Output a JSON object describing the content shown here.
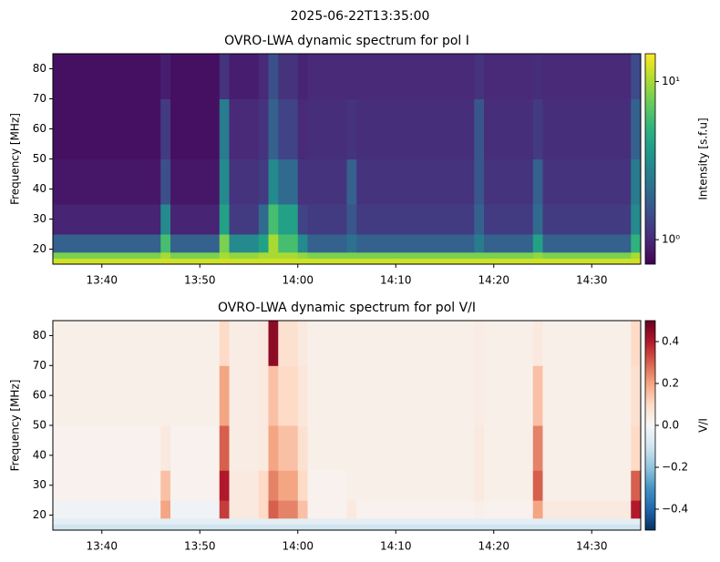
{
  "title": "2025-06-22T13:35:00",
  "chart_data": [
    {
      "type": "heatmap",
      "title": "OVRO-LWA dynamic spectrum for pol I",
      "ylabel": "Frequency [MHz]",
      "colorbar_label": "Intensity [s.f.u]",
      "colormap": "viridis",
      "color_scale": "log",
      "x": [
        "13:35",
        "13:46",
        "13:47",
        "13:52",
        "13:53",
        "13:56",
        "13:57",
        "13:58",
        "14:00",
        "14:01",
        "14:05",
        "14:06",
        "14:18",
        "14:19",
        "14:24",
        "14:25",
        "14:34",
        "14:35"
      ],
      "y": [
        15,
        17,
        19,
        25,
        35,
        50,
        70,
        85
      ],
      "values": [
        [
          12,
          12,
          12,
          12,
          12,
          12,
          12,
          12,
          12,
          12,
          12,
          12,
          12,
          12,
          12,
          12,
          12
        ],
        [
          8,
          10,
          8,
          10,
          9,
          10,
          10,
          10,
          9,
          8,
          8,
          8,
          8,
          8,
          9,
          8,
          10
        ],
        [
          1.8,
          6,
          1.8,
          8,
          3,
          4,
          10,
          6,
          3,
          1.8,
          2.2,
          1.8,
          2.5,
          1.8,
          4,
          1.8,
          5
        ],
        [
          0.95,
          3,
          0.95,
          4,
          1.2,
          2,
          6,
          4,
          1.3,
          1.2,
          1.6,
          1.2,
          1.8,
          1.2,
          2,
          1.2,
          3
        ],
        [
          0.85,
          1.5,
          0.85,
          3,
          1.1,
          1.2,
          3,
          2,
          1.1,
          1.1,
          1.8,
          1.1,
          1.6,
          1.1,
          1.8,
          1.1,
          2.5
        ],
        [
          0.8,
          1.2,
          0.8,
          2.5,
          1,
          1.1,
          1.8,
          1.3,
          1,
          1.05,
          1.1,
          1.05,
          1.6,
          1.05,
          1.2,
          1.05,
          1.8
        ],
        [
          0.8,
          0.9,
          0.8,
          1.1,
          0.9,
          1,
          1.5,
          1.1,
          0.95,
          1,
          1,
          1,
          1.1,
          1,
          1.05,
          1,
          1.4
        ]
      ],
      "xlim": [
        "13:35",
        "14:35"
      ],
      "xticks": [
        "13:40",
        "13:50",
        "14:00",
        "14:10",
        "14:20",
        "14:30"
      ],
      "ylim": [
        15,
        85
      ],
      "yticks": [
        20,
        30,
        40,
        50,
        60,
        70,
        80
      ],
      "clim": [
        0.7,
        15
      ],
      "cticks": [
        {
          "value": 1,
          "label": "10⁰"
        },
        {
          "value": 10,
          "label": "10¹"
        }
      ]
    },
    {
      "type": "heatmap",
      "title": "OVRO-LWA dynamic spectrum for pol V/I",
      "ylabel": "Frequency [MHz]",
      "colorbar_label": "V/I",
      "colormap": "RdBu_r",
      "color_scale": "linear",
      "x": [
        "13:35",
        "13:46",
        "13:47",
        "13:52",
        "13:53",
        "13:56",
        "13:57",
        "13:58",
        "14:00",
        "14:01",
        "14:05",
        "14:06",
        "14:18",
        "14:19",
        "14:24",
        "14:25",
        "14:34",
        "14:35"
      ],
      "y": [
        15,
        17,
        19,
        25,
        35,
        50,
        70,
        85
      ],
      "values": [
        [
          -0.1,
          -0.1,
          -0.1,
          -0.1,
          -0.1,
          -0.1,
          -0.1,
          -0.1,
          -0.1,
          -0.1,
          -0.1,
          -0.1,
          -0.1,
          -0.1,
          -0.1,
          -0.1,
          -0.1
        ],
        [
          -0.05,
          -0.05,
          -0.05,
          -0.05,
          -0.05,
          -0.05,
          -0.05,
          -0.05,
          -0.05,
          -0.05,
          -0.05,
          -0.05,
          -0.05,
          -0.05,
          -0.05,
          -0.05,
          -0.05
        ],
        [
          -0.02,
          0.2,
          -0.02,
          0.35,
          0.05,
          0.1,
          0.3,
          0.25,
          0.15,
          0.02,
          0.05,
          0.02,
          0.03,
          0.02,
          0.2,
          0.05,
          0.4
        ],
        [
          0.02,
          0.15,
          0.02,
          0.4,
          0.05,
          0.1,
          0.25,
          0.2,
          0.1,
          0.02,
          0.03,
          0.03,
          0.05,
          0.03,
          0.3,
          0.03,
          0.3
        ],
        [
          0.02,
          0.05,
          0.02,
          0.3,
          0.04,
          0.05,
          0.2,
          0.15,
          0.08,
          0.03,
          0.03,
          0.03,
          0.05,
          0.03,
          0.25,
          0.03,
          0.1
        ],
        [
          0.03,
          0.03,
          0.03,
          0.2,
          0.04,
          0.05,
          0.15,
          0.1,
          0.06,
          0.03,
          0.03,
          0.03,
          0.04,
          0.03,
          0.15,
          0.03,
          0.08
        ],
        [
          0.03,
          0.03,
          0.03,
          0.1,
          0.04,
          0.05,
          0.45,
          0.08,
          0.05,
          0.03,
          0.03,
          0.03,
          0.04,
          0.03,
          0.05,
          0.03,
          0.1
        ]
      ],
      "xlim": [
        "13:35",
        "14:35"
      ],
      "xticks": [
        "13:40",
        "13:50",
        "14:00",
        "14:10",
        "14:20",
        "14:30"
      ],
      "ylim": [
        15,
        85
      ],
      "yticks": [
        20,
        30,
        40,
        50,
        60,
        70,
        80
      ],
      "clim": [
        -0.5,
        0.5
      ],
      "cticks": [
        {
          "value": -0.4,
          "label": "−0.4"
        },
        {
          "value": -0.2,
          "label": "−0.2"
        },
        {
          "value": 0,
          "label": "0.0"
        },
        0.2,
        0.4
      ]
    }
  ]
}
